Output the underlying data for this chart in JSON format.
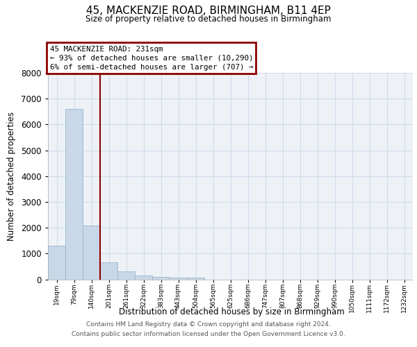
{
  "title_line1": "45, MACKENZIE ROAD, BIRMINGHAM, B11 4EP",
  "title_line2": "Size of property relative to detached houses in Birmingham",
  "xlabel": "Distribution of detached houses by size in Birmingham",
  "ylabel": "Number of detached properties",
  "categories": [
    "19sqm",
    "79sqm",
    "140sqm",
    "201sqm",
    "261sqm",
    "322sqm",
    "383sqm",
    "443sqm",
    "504sqm",
    "565sqm",
    "625sqm",
    "686sqm",
    "747sqm",
    "807sqm",
    "868sqm",
    "929sqm",
    "990sqm",
    "1050sqm",
    "1111sqm",
    "1172sqm",
    "1232sqm"
  ],
  "bar_heights": [
    1300,
    6600,
    2080,
    670,
    300,
    140,
    90,
    65,
    65,
    0,
    0,
    0,
    0,
    0,
    0,
    0,
    0,
    0,
    0,
    0,
    0
  ],
  "bar_color": "#c8d8e8",
  "bar_edge_color": "#9ab4cc",
  "vline_x": 2.5,
  "vline_color": "#8b0000",
  "annotation_text": "45 MACKENZIE ROAD: 231sqm\n← 93% of detached houses are smaller (10,290)\n6% of semi-detached houses are larger (707) →",
  "annotation_box_edgecolor": "#8b0000",
  "ylim_max": 8000,
  "yticks": [
    0,
    1000,
    2000,
    3000,
    4000,
    5000,
    6000,
    7000,
    8000
  ],
  "grid_color": "#d0dcec",
  "bg_color": "#eef2f7",
  "footer_line1": "Contains HM Land Registry data © Crown copyright and database right 2024.",
  "footer_line2": "Contains public sector information licensed under the Open Government Licence v3.0."
}
